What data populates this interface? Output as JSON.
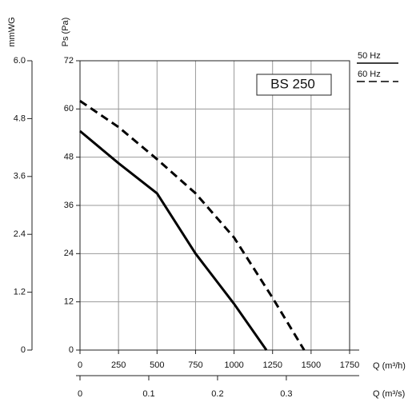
{
  "chart_data": {
    "type": "line",
    "xlabel": "Q (m³/h)",
    "ylabel": "Ps (Pa)",
    "xlim": [
      0,
      1750
    ],
    "xticks": [
      0,
      250,
      500,
      750,
      1000,
      1250,
      1500,
      1750
    ],
    "ylim": [
      0,
      72
    ],
    "yticks": [
      0,
      12,
      24,
      36,
      48,
      60,
      72
    ],
    "x2label": "Q (m³/s)",
    "x2lim": [
      0,
      0.392
    ],
    "x2ticks": [
      0,
      0.1,
      0.2,
      0.3
    ],
    "y2label": "mmWG",
    "y2lim": [
      0,
      6
    ],
    "y2ticks": [
      0,
      1.2,
      2.4,
      3.6,
      4.8,
      {
        "value": 6,
        "label": "6.0"
      }
    ],
    "grid": true,
    "legend": "top-right",
    "annotation": "BS 250",
    "series": [
      {
        "name": "50 Hz",
        "color": "#000000",
        "dashed": false,
        "x": [
          0,
          250,
          500,
          750,
          1000,
          1210
        ],
        "values": [
          54.5,
          46.5,
          39,
          24,
          11.5,
          0
        ]
      },
      {
        "name": "60 Hz",
        "color": "#000000",
        "dashed": true,
        "x": [
          0,
          250,
          500,
          750,
          1000,
          1250,
          1455
        ],
        "values": [
          62,
          55.5,
          47.5,
          39,
          28,
          13,
          0
        ]
      }
    ]
  }
}
